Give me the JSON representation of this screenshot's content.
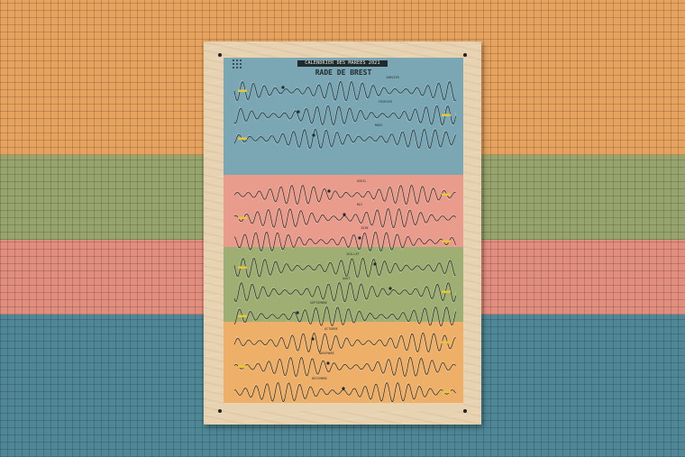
{
  "poster": {
    "title": "CALENDRIER DES MARÉES 2021",
    "subtitle": "RADE DE BREST",
    "months": [
      {
        "name": "JANVIER",
        "section": "blue"
      },
      {
        "name": "FÉVRIER",
        "section": "blue"
      },
      {
        "name": "MARS",
        "section": "blue"
      },
      {
        "name": "AVRIL",
        "section": "pink"
      },
      {
        "name": "MAI",
        "section": "pink"
      },
      {
        "name": "JUIN",
        "section": "pink"
      },
      {
        "name": "JUILLET",
        "section": "green"
      },
      {
        "name": "AOÛT",
        "section": "green"
      },
      {
        "name": "SEPTEMBRE",
        "section": "green"
      },
      {
        "name": "OCTOBRE",
        "section": "orange"
      },
      {
        "name": "NOVEMBRE",
        "section": "orange"
      },
      {
        "name": "DÉCEMBRE",
        "section": "orange"
      }
    ]
  },
  "colors": {
    "wall_orange": "#e6a35f",
    "wall_green": "#98a46d",
    "wall_pink": "#e28e7e",
    "wall_blue": "#4f8797",
    "poster_blue": "#7ba6b3",
    "poster_pink": "#e99c8b",
    "poster_green": "#9fae73",
    "poster_orange": "#eeaf68",
    "wood": "#e7d3b2",
    "ink": "#1f2a2e",
    "highlight": "#e8c53a"
  }
}
